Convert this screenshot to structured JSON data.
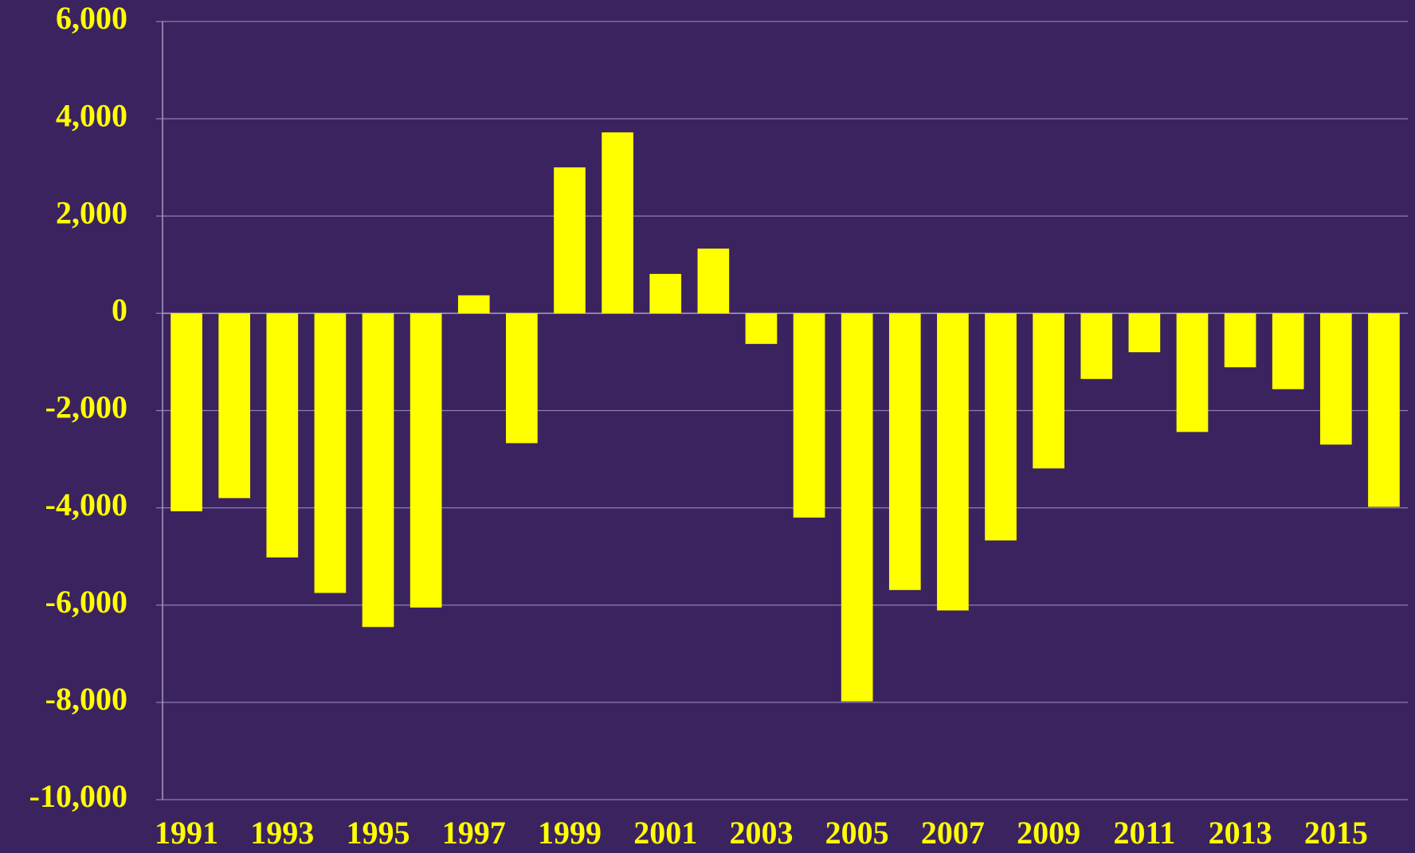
{
  "chart_data": {
    "type": "bar",
    "categories": [
      "1991",
      null,
      "1993",
      null,
      "1995",
      null,
      "1997",
      null,
      "1999",
      null,
      "2001",
      null,
      "2003",
      null,
      "2005",
      null,
      "2007",
      null,
      "2009",
      null,
      "2011",
      null,
      "2013",
      null,
      "2015",
      null
    ],
    "values": [
      -4070,
      -3800,
      -5020,
      -5750,
      -6450,
      -6050,
      370,
      -2670,
      3000,
      3720,
      810,
      1330,
      -630,
      -4200,
      -7980,
      -5690,
      -6110,
      -4670,
      -3190,
      -1350,
      -800,
      -2440,
      -1110,
      -1560,
      -2700,
      -3980
    ],
    "color": "#ffff00",
    "ylim": [
      -10000,
      6000
    ],
    "yticks": [
      {
        "value": -10000,
        "label": "-10,000"
      },
      {
        "value": -8000,
        "label": "-8,000"
      },
      {
        "value": -6000,
        "label": "-6,000"
      },
      {
        "value": -4000,
        "label": "-4,000"
      },
      {
        "value": -2000,
        "label": "-2,000"
      },
      0,
      {
        "value": 2000,
        "label": "2,000"
      },
      {
        "value": 4000,
        "label": "4,000"
      },
      {
        "value": 6000,
        "label": "6,000"
      }
    ],
    "grid": true
  }
}
